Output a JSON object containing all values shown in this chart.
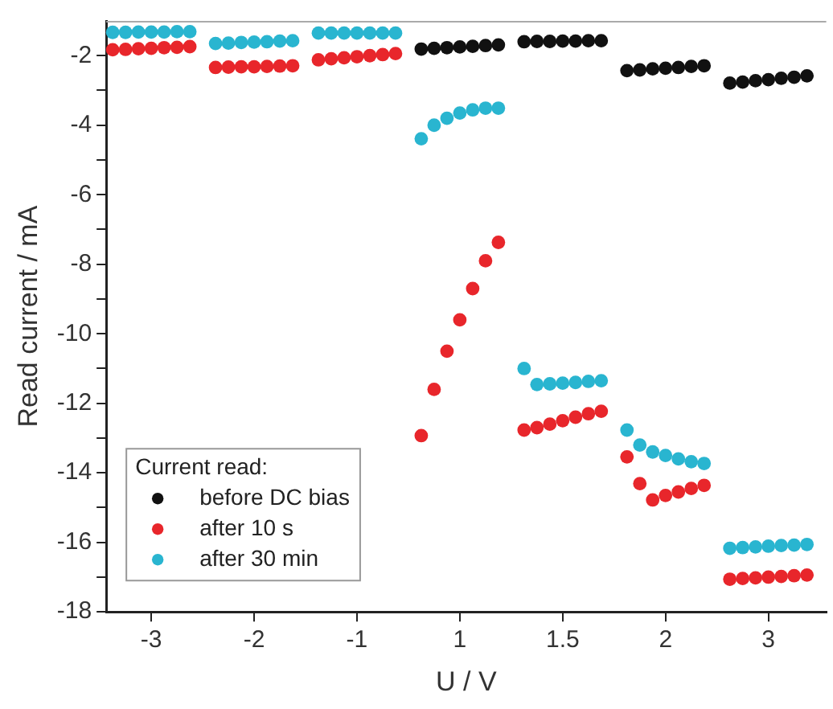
{
  "chart_data": {
    "type": "scatter",
    "xlabel": "U / V",
    "ylabel": "Read current / mA",
    "legend_title": "Current read:",
    "legend": "bottom left",
    "grid": false,
    "marker": "circle",
    "categories": [
      null,
      null,
      null,
      "-3",
      null,
      null,
      null,
      null,
      null,
      null,
      null,
      "-2",
      null,
      null,
      null,
      null,
      null,
      null,
      null,
      "-1",
      null,
      null,
      null,
      null,
      null,
      null,
      null,
      "1",
      null,
      null,
      null,
      null,
      null,
      null,
      null,
      "1.5",
      null,
      null,
      null,
      null,
      null,
      null,
      null,
      "2",
      null,
      null,
      null,
      null,
      null,
      null,
      null,
      "3",
      null,
      null,
      null,
      null
    ],
    "ylim": [
      -18,
      -1
    ],
    "yticks": [
      -2,
      {
        "value": -3,
        "label": null
      },
      -4,
      {
        "value": -5,
        "label": null
      },
      -6,
      {
        "value": -7,
        "label": null
      },
      -8,
      {
        "value": -9,
        "label": null
      },
      -10,
      {
        "value": -11,
        "label": null
      },
      -12,
      {
        "value": -13,
        "label": null
      },
      -14,
      {
        "value": -15,
        "label": null
      },
      -16,
      {
        "value": -17,
        "label": null
      },
      -18
    ],
    "series": [
      {
        "name": "before DC bias",
        "color": "#111111",
        "values": [
          null,
          null,
          null,
          null,
          null,
          null,
          null,
          null,
          null,
          null,
          null,
          null,
          null,
          null,
          null,
          null,
          null,
          null,
          null,
          null,
          null,
          null,
          null,
          null,
          -1.81,
          -1.79,
          -1.77,
          -1.75,
          -1.73,
          -1.71,
          -1.69,
          null,
          -1.6,
          -1.59,
          -1.59,
          -1.58,
          -1.58,
          -1.57,
          -1.57,
          null,
          -2.43,
          -2.41,
          -2.38,
          -2.36,
          -2.34,
          -2.31,
          -2.29,
          null,
          -2.79,
          -2.76,
          -2.72,
          -2.69,
          -2.65,
          -2.62,
          -2.58,
          null
        ]
      },
      {
        "name": "after 10 s",
        "color": "#e8262b",
        "values": [
          -1.83,
          -1.82,
          -1.8,
          -1.79,
          -1.77,
          -1.76,
          -1.74,
          null,
          -2.34,
          -2.33,
          -2.32,
          -2.32,
          -2.31,
          -2.3,
          -2.29,
          null,
          -2.12,
          -2.09,
          -2.06,
          -2.03,
          -2.0,
          -1.97,
          -1.94,
          null,
          -12.93,
          -11.6,
          -10.5,
          -9.6,
          -8.7,
          -7.9,
          -7.37,
          null,
          -12.77,
          -12.7,
          -12.6,
          -12.5,
          -12.4,
          -12.3,
          -12.23,
          null,
          -13.54,
          -14.31,
          -14.78,
          -14.65,
          -14.55,
          -14.45,
          -14.36,
          null,
          -17.06,
          -17.04,
          -17.02,
          -17.0,
          -16.98,
          -16.96,
          -16.94,
          null
        ]
      },
      {
        "name": "after 30 min",
        "color": "#29b5d0",
        "values": [
          -1.33,
          -1.33,
          -1.32,
          -1.32,
          -1.32,
          -1.31,
          -1.31,
          null,
          -1.65,
          -1.64,
          -1.62,
          -1.61,
          -1.6,
          -1.58,
          -1.57,
          null,
          -1.35,
          -1.35,
          -1.35,
          -1.35,
          -1.35,
          -1.35,
          -1.35,
          null,
          -4.39,
          -4.0,
          -3.8,
          -3.65,
          -3.56,
          -3.51,
          -3.51,
          null,
          -11.0,
          -11.46,
          -11.44,
          -11.42,
          -11.4,
          -11.37,
          -11.35,
          null,
          -12.77,
          -13.2,
          -13.4,
          -13.5,
          -13.6,
          -13.68,
          -13.73,
          null,
          -16.17,
          -16.15,
          -16.13,
          -16.11,
          -16.09,
          -16.08,
          -16.06,
          null
        ]
      }
    ]
  }
}
